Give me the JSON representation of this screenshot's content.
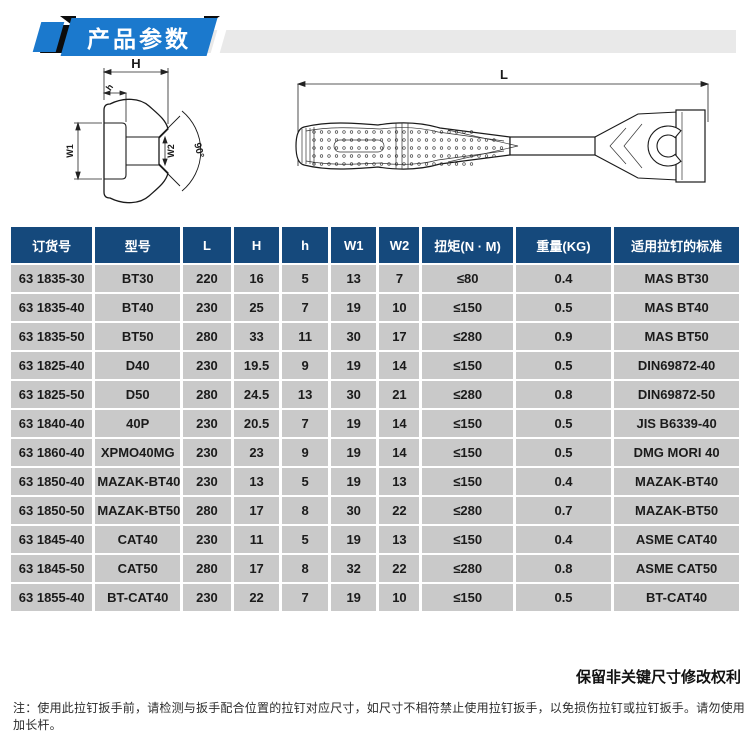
{
  "header": {
    "title": "产品参数",
    "badge_color": "#1b79cd",
    "bar_color": "#e9e9e9",
    "accent_color": "#0c0c0c"
  },
  "diagram": {
    "head_view": {
      "labels": {
        "H": "H",
        "h": "h",
        "W1": "W1",
        "W2": "W2",
        "angle": "90°"
      }
    },
    "length_view": {
      "L": "L"
    }
  },
  "table": {
    "header_bg": "#15497c",
    "row_bg": "#c9c9c9",
    "columns": [
      "订货号",
      "型号",
      "L",
      "H",
      "h",
      "W1",
      "W2",
      "扭矩(N · M)",
      "重量(KG)",
      "适用拉钉的标准"
    ],
    "rows": [
      [
        "63 1835-30",
        "BT30",
        "220",
        "16",
        "5",
        "13",
        "7",
        "≤80",
        "0.4",
        "MAS BT30"
      ],
      [
        "63 1835-40",
        "BT40",
        "230",
        "25",
        "7",
        "19",
        "10",
        "≤150",
        "0.5",
        "MAS BT40"
      ],
      [
        "63 1835-50",
        "BT50",
        "280",
        "33",
        "11",
        "30",
        "17",
        "≤280",
        "0.9",
        "MAS BT50"
      ],
      [
        "63 1825-40",
        "D40",
        "230",
        "19.5",
        "9",
        "19",
        "14",
        "≤150",
        "0.5",
        "DIN69872-40"
      ],
      [
        "63 1825-50",
        "D50",
        "280",
        "24.5",
        "13",
        "30",
        "21",
        "≤280",
        "0.8",
        "DIN69872-50"
      ],
      [
        "63 1840-40",
        "40P",
        "230",
        "20.5",
        "7",
        "19",
        "14",
        "≤150",
        "0.5",
        "JIS B6339-40"
      ],
      [
        "63 1860-40",
        "XPMO40MG",
        "230",
        "23",
        "9",
        "19",
        "14",
        "≤150",
        "0.5",
        "DMG MORI 40"
      ],
      [
        "63 1850-40",
        "MAZAK-BT40",
        "230",
        "13",
        "5",
        "19",
        "13",
        "≤150",
        "0.4",
        "MAZAK-BT40"
      ],
      [
        "63 1850-50",
        "MAZAK-BT50",
        "280",
        "17",
        "8",
        "30",
        "22",
        "≤280",
        "0.7",
        "MAZAK-BT50"
      ],
      [
        "63 1845-40",
        "CAT40",
        "230",
        "11",
        "5",
        "19",
        "13",
        "≤150",
        "0.4",
        "ASME CAT40"
      ],
      [
        "63 1845-50",
        "CAT50",
        "280",
        "17",
        "8",
        "32",
        "22",
        "≤280",
        "0.8",
        "ASME CAT50"
      ],
      [
        "63 1855-40",
        "BT-CAT40",
        "230",
        "22",
        "7",
        "19",
        "10",
        "≤150",
        "0.5",
        "BT-CAT40"
      ]
    ]
  },
  "footer": {
    "rights_note": "保留非关键尺寸修改权利",
    "usage_note": "注：使用此拉钉扳手前，请检测与扳手配合位置的拉钉对应尺寸，如尺寸不相符禁止使用拉钉扳手，以免损伤拉钉或拉钉扳手。请勿使用加长杆。"
  }
}
